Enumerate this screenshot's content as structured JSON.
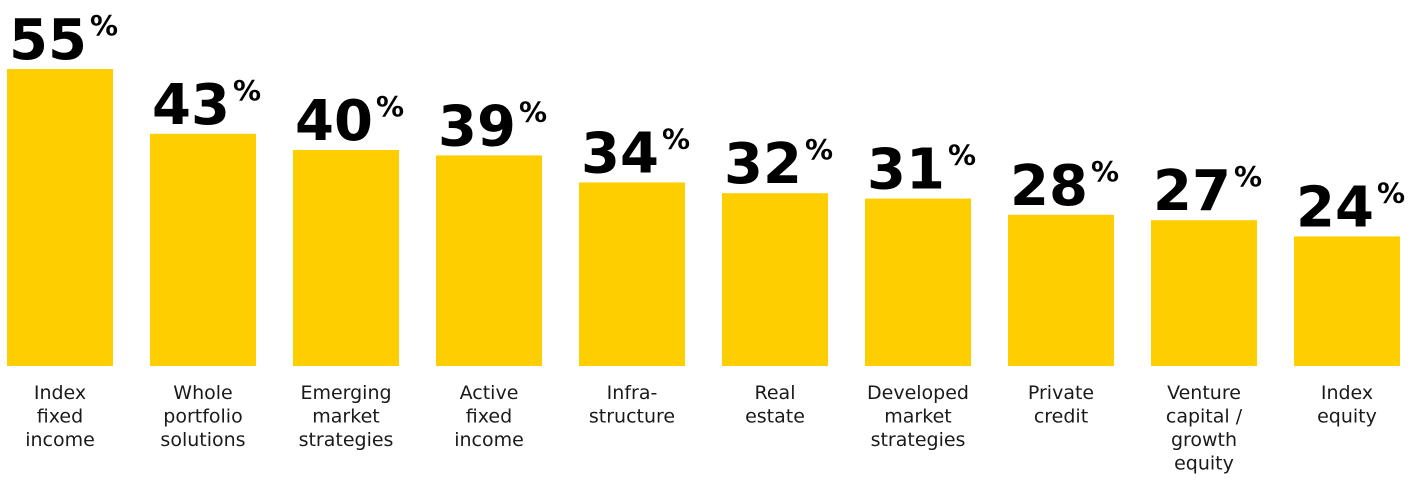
{
  "colors": {
    "bar": "#FFCE00",
    "value_text": "#000000",
    "label_text": "#1a1a1a"
  },
  "chart_data": {
    "type": "bar",
    "title": "",
    "xlabel": "",
    "ylabel": "",
    "value_suffix": "%",
    "ylim": [
      0,
      55
    ],
    "grid": false,
    "legend": "none",
    "categories": [
      [
        "Index",
        "fixed",
        "income"
      ],
      [
        "Whole",
        "portfolio",
        "solutions"
      ],
      [
        "Emerging",
        "market",
        "strategies"
      ],
      [
        "Active",
        "fixed",
        "income"
      ],
      [
        "Infra-",
        "structure"
      ],
      [
        "Real",
        "estate"
      ],
      [
        "Developed",
        "market",
        "strategies"
      ],
      [
        "Private",
        "credit"
      ],
      [
        "Venture",
        "capital /",
        "growth",
        "equity"
      ],
      [
        "Index",
        "equity"
      ]
    ],
    "values": [
      55,
      43,
      40,
      39,
      34,
      32,
      31,
      28,
      27,
      24
    ]
  }
}
